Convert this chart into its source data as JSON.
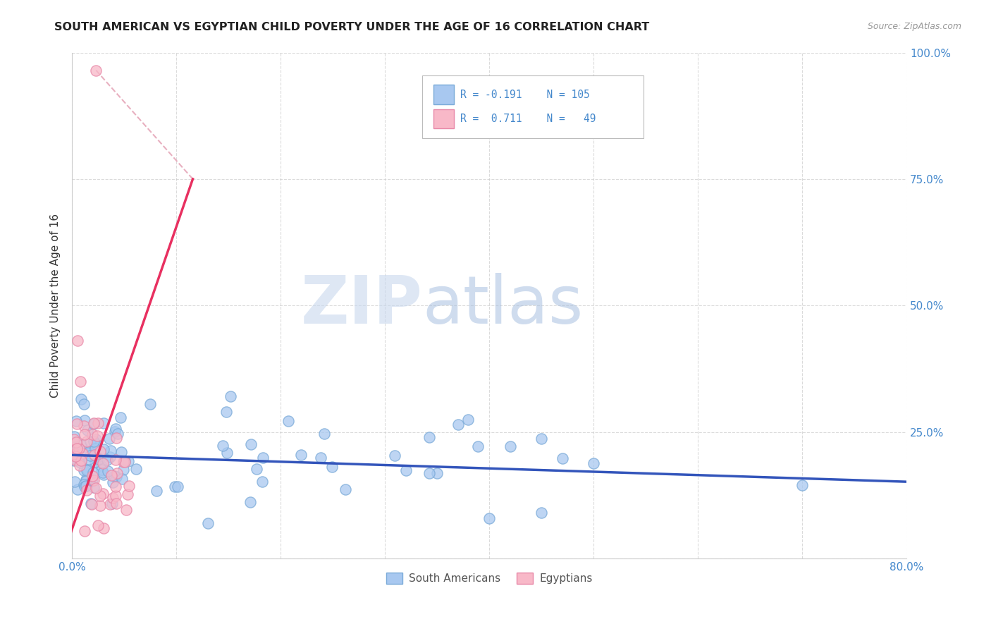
{
  "title": "SOUTH AMERICAN VS EGYPTIAN CHILD POVERTY UNDER THE AGE OF 16 CORRELATION CHART",
  "source": "Source: ZipAtlas.com",
  "ylabel": "Child Poverty Under the Age of 16",
  "xlim": [
    0.0,
    0.8
  ],
  "ylim": [
    0.0,
    1.0
  ],
  "xticks": [
    0.0,
    0.1,
    0.2,
    0.3,
    0.4,
    0.5,
    0.6,
    0.7,
    0.8
  ],
  "xticklabels": [
    "0.0%",
    "",
    "",
    "",
    "",
    "",
    "",
    "",
    "80.0%"
  ],
  "yticks": [
    0.0,
    0.25,
    0.5,
    0.75,
    1.0
  ],
  "yticklabels": [
    "",
    "25.0%",
    "50.0%",
    "75.0%",
    "100.0%"
  ],
  "south_american_color": "#A8C8F0",
  "south_american_edge": "#7AAAD8",
  "egyptian_color": "#F8B8C8",
  "egyptian_edge": "#E888A8",
  "south_american_line_color": "#3355BB",
  "egyptian_line_color": "#E83060",
  "regression_dashed_color": "#E8B0C0",
  "R_south": -0.191,
  "N_south": 105,
  "R_egypt": 0.711,
  "N_egypt": 49,
  "watermark_zip": "ZIP",
  "watermark_atlas": "atlas",
  "legend_labels": [
    "South Americans",
    "Egyptians"
  ],
  "title_fontsize": 11.5,
  "tick_color": "#4488CC",
  "grid_color": "#CCCCCC"
}
